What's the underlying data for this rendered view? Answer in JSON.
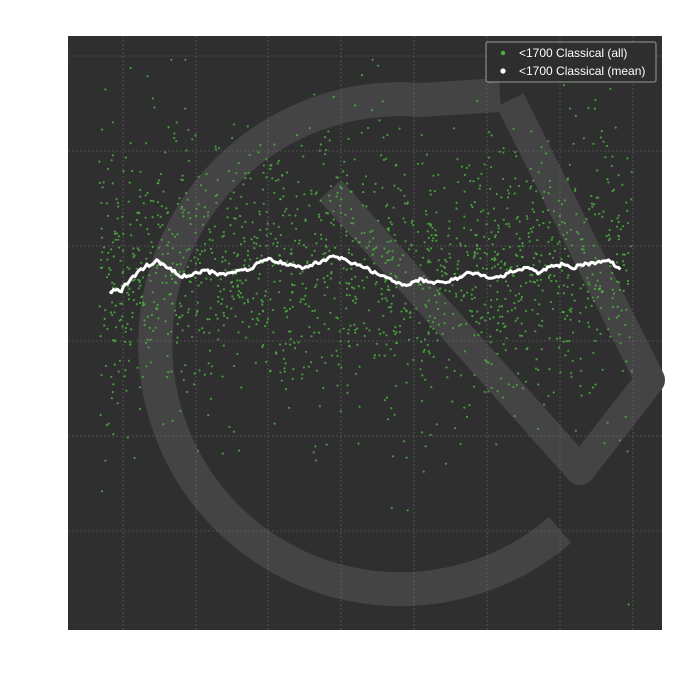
{
  "chart_data": {
    "type": "scatter",
    "title": "",
    "xlabel": "",
    "ylabel": "",
    "xlim": [
      0,
      100
    ],
    "ylim": [
      0,
      100
    ],
    "grid": true,
    "legend_position": "top-right",
    "colors": {
      "background": "#2f2f2f",
      "grid": "#6a6a6a",
      "watermark": "#444444",
      "all_points": "#4caf3f",
      "mean_line": "#ffffff",
      "legend_border": "#9a9a9a"
    },
    "series": [
      {
        "name": "<1700 Classical (all)",
        "kind": "scatter",
        "generator": {
          "count": 1650,
          "x_range": [
            5,
            95
          ],
          "band_center_from": "mean",
          "spread": 12,
          "seed": 17
        },
        "outliers": [
          [
            6.3,
            91
          ],
          [
            14.3,
            89.5
          ],
          [
            52.2,
            95
          ],
          [
            53,
            89
          ],
          [
            94.4,
            4.3
          ],
          [
            54.5,
            20.5
          ],
          [
            6.3,
            28.5
          ],
          [
            57,
            29
          ],
          [
            48.7,
            48
          ]
        ]
      },
      {
        "name": "<1700 Classical (mean)",
        "kind": "line",
        "x": [
          7,
          9,
          11,
          13,
          15,
          17,
          19,
          21,
          23,
          25,
          27,
          29,
          31,
          33,
          35,
          37,
          39,
          41,
          43,
          45,
          47,
          49,
          51,
          53,
          55,
          57,
          59,
          61,
          63,
          65,
          67,
          69,
          71,
          73,
          75,
          77,
          79,
          81,
          83,
          85,
          87,
          89,
          91,
          93
        ],
        "y": [
          57,
          57.2,
          59.5,
          61.2,
          62.2,
          61,
          59.5,
          60,
          60.5,
          60,
          59.8,
          60.5,
          61,
          62.5,
          62.2,
          61.5,
          61,
          61.5,
          62.2,
          63,
          62,
          61.5,
          60.5,
          59.8,
          58.5,
          58,
          59,
          58.5,
          58.5,
          59,
          60,
          60,
          59.2,
          59.5,
          60.5,
          61,
          60.2,
          61,
          61.5,
          61,
          61.5,
          62,
          62.5,
          60.5
        ]
      }
    ]
  }
}
